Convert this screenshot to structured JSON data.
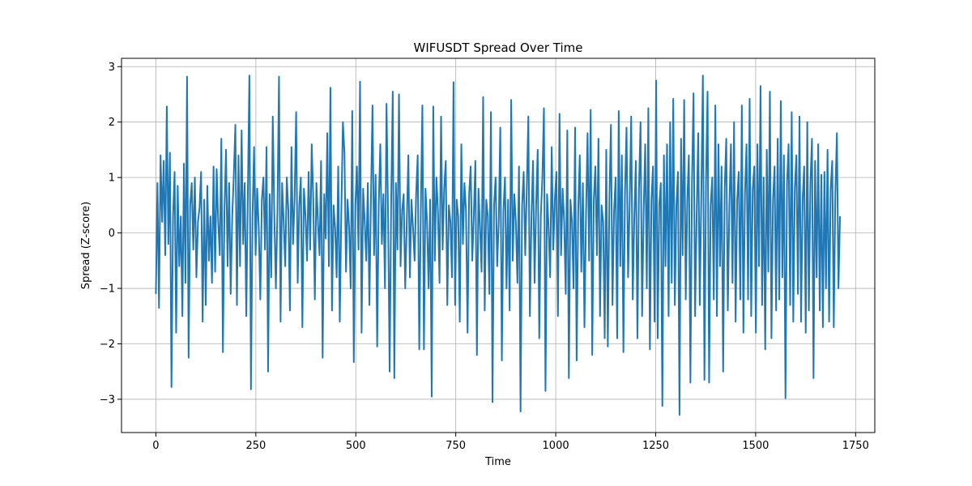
{
  "chart_data": {
    "type": "line",
    "title": "WIFUSDT Spread Over Time",
    "xlabel": "Time",
    "ylabel": "Spread (Z-score)",
    "xlim": [
      -86,
      1798
    ],
    "ylim": [
      -3.6,
      3.15
    ],
    "xticks": [
      0,
      250,
      500,
      750,
      1000,
      1250,
      1500,
      1750
    ],
    "yticks": [
      -3,
      -2,
      -1,
      0,
      1,
      2,
      3
    ],
    "xtick_labels": [
      "0",
      "250",
      "500",
      "750",
      "1000",
      "1250",
      "1500",
      "1750"
    ],
    "ytick_labels": [
      "−3",
      "−2",
      "−1",
      "0",
      "1",
      "2",
      "3"
    ],
    "grid": true,
    "x_range": [
      0,
      1711
    ],
    "series": [
      {
        "color": "#1f77b4",
        "values": [
          -1.1,
          0.9,
          -1.35,
          1.4,
          0.2,
          1.3,
          -0.4,
          2.28,
          -0.2,
          1.45,
          -2.78,
          0.3,
          1.1,
          -1.8,
          0.85,
          -0.6,
          0.3,
          -1.5,
          1.25,
          -0.9,
          2.82,
          -2.25,
          0.5,
          0.9,
          -0.3,
          1.0,
          -0.8,
          0.2,
          0.45,
          1.1,
          -1.6,
          0.6,
          -1.3,
          0.85,
          -0.5,
          0.3,
          -0.9,
          1.2,
          -0.7,
          1.15,
          0.2,
          -0.4,
          1.7,
          -2.15,
          0.4,
          1.5,
          -0.6,
          0.9,
          -1.1,
          0.3,
          1.05,
          1.95,
          -1.3,
          1.4,
          -0.6,
          1.85,
          -0.2,
          0.9,
          -1.5,
          0.7,
          2.84,
          -2.82,
          0.3,
          1.55,
          -0.4,
          0.8,
          0.1,
          -1.2,
          0.6,
          1.0,
          -0.3,
          1.55,
          -2.5,
          0.7,
          -0.8,
          2.1,
          0.3,
          -1.0,
          0.4,
          2.82,
          -1.6,
          0.9,
          0.2,
          -0.6,
          1.0,
          0.4,
          -1.4,
          1.55,
          -0.2,
          0.6,
          2.18,
          -0.9,
          0.5,
          1.0,
          -1.7,
          0.8,
          0.3,
          -0.5,
          1.1,
          -0.3,
          1.6,
          0.6,
          -1.2,
          0.9,
          0.2,
          -0.4,
          1.3,
          -2.25,
          0.7,
          -0.1,
          1.8,
          -0.6,
          2.62,
          -1.4,
          0.5,
          0.1,
          -0.8,
          1.2,
          -1.6,
          0.4,
          2.0,
          1.45,
          -0.7,
          0.6,
          0.1,
          -1.0,
          2.2,
          -2.33,
          0.5,
          1.2,
          -0.3,
          2.73,
          -1.8,
          0.8,
          0.2,
          -0.5,
          0.9,
          -1.3,
          0.6,
          2.3,
          -0.4,
          1.05,
          -2.05,
          0.5,
          1.6,
          -0.2,
          0.7,
          -1.0,
          2.33,
          0.3,
          -2.5,
          0.6,
          2.55,
          -2.62,
          0.9,
          -0.3,
          2.5,
          -0.6,
          0.4,
          0.7,
          -1.0,
          0.2,
          1.4,
          -0.8,
          0.6,
          0.1,
          -0.5,
          0.7,
          1.4,
          -2.1,
          0.4,
          2.3,
          -2.1,
          0.8,
          0.2,
          -1.0,
          0.6,
          -2.95,
          2.28,
          -0.5,
          1.0,
          0.4,
          -0.9,
          2.1,
          -0.3,
          0.8,
          1.3,
          -1.3,
          0.5,
          0.2,
          -0.8,
          2.72,
          -1.3,
          0.6,
          0.3,
          -1.6,
          1.6,
          -0.2,
          0.9,
          0.4,
          -1.8,
          0.7,
          1.2,
          -0.5,
          0.3,
          1.3,
          -2.2,
          0.8,
          0.1,
          -0.7,
          2.45,
          -1.4,
          0.6,
          0.3,
          -1.1,
          2.18,
          -3.05,
          0.5,
          1.0,
          -0.6,
          0.2,
          1.9,
          -2.3,
          0.4,
          1.0,
          -1.0,
          0.6,
          -1.4,
          2.4,
          -0.5,
          0.7,
          0.2,
          -0.9,
          1.2,
          -3.22,
          0.5,
          1.1,
          -0.4,
          0.8,
          2.1,
          -1.5,
          0.3,
          1.3,
          -0.9,
          0.5,
          1.5,
          -1.9,
          0.3,
          1.0,
          2.25,
          -2.85,
          0.7,
          0.1,
          -0.8,
          1.55,
          -0.3,
          0.6,
          1.1,
          -1.5,
          2.15,
          -0.4,
          0.8,
          0.2,
          -1.1,
          1.85,
          -2.62,
          0.6,
          0.2,
          -1.0,
          1.9,
          -2.3,
          0.4,
          1.4,
          -0.7,
          0.9,
          -1.7,
          0.3,
          1.8,
          -0.5,
          2.22,
          -2.2,
          0.6,
          1.2,
          -0.4,
          1.7,
          -1.5,
          0.5,
          0.2,
          -1.9,
          1.5,
          -2.05,
          0.6,
          1.95,
          -1.3,
          0.4,
          1.0,
          -1.9,
          2.2,
          -0.6,
          1.4,
          -2.15,
          0.7,
          1.9,
          -0.8,
          0.5,
          2.1,
          -1.2,
          0.3,
          1.3,
          -1.9,
          0.8,
          2.0,
          -1.5,
          0.4,
          1.6,
          -1.0,
          2.25,
          -2.1,
          0.6,
          1.2,
          -1.6,
          2.75,
          -1.9,
          0.5,
          0.9,
          -3.12,
          1.4,
          -0.6,
          1.6,
          -1.5,
          2.0,
          -0.9,
          2.42,
          -1.3,
          0.5,
          1.1,
          -3.28,
          1.7,
          -0.4,
          2.4,
          -1.2,
          0.6,
          1.4,
          -2.7,
          0.9,
          2.52,
          -1.5,
          0.3,
          1.8,
          -1.3,
          0.7,
          2.84,
          -2.65,
          0.9,
          2.55,
          -2.7,
          0.5,
          1.0,
          -1.2,
          2.3,
          -1.5,
          1.6,
          -0.6,
          1.2,
          -2.5,
          0.8,
          1.7,
          -1.4,
          0.5,
          1.6,
          -0.9,
          2.0,
          -1.6,
          0.6,
          1.1,
          -1.2,
          2.3,
          -1.8,
          0.7,
          1.6,
          -1.2,
          2.42,
          -1.5,
          0.8,
          1.2,
          -1.8,
          1.6,
          -0.6,
          2.65,
          -1.3,
          1.0,
          -2.1,
          1.5,
          -0.7,
          2.55,
          -1.9,
          0.6,
          1.2,
          -1.4,
          1.7,
          -1.2,
          2.38,
          -0.8,
          1.4,
          -2.98,
          0.9,
          1.6,
          -1.3,
          2.18,
          -1.6,
          0.8,
          1.4,
          -1.1,
          2.1,
          -1.6,
          0.6,
          1.2,
          -1.8,
          2.0,
          -1.4,
          0.9,
          1.7,
          -2.62,
          1.3,
          -0.8,
          1.6,
          -1.4,
          1.05,
          -1.7,
          1.1,
          -1.0,
          1.5,
          -1.6,
          0.8,
          1.3,
          -1.7,
          0.7,
          1.8,
          -1.0,
          0.3
        ]
      }
    ]
  }
}
